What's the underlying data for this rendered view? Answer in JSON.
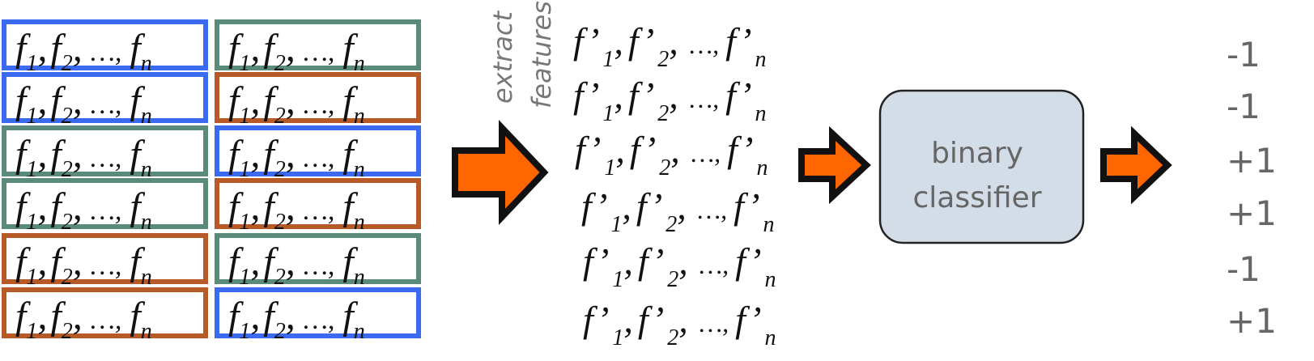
{
  "colors": {
    "blue": "#3a6af0",
    "green": "#5a8a78",
    "orange": "#b85a28",
    "arrow_fill": "#ff6600",
    "arrow_stroke": "#111111",
    "classifier_fill": "#d3dde8",
    "classifier_stroke": "#222222",
    "text_gray": "#666666",
    "label_gray": "#777777"
  },
  "left_grid": {
    "column_colors": [
      [
        "blue",
        "blue",
        "green",
        "green",
        "orange",
        "orange"
      ],
      [
        "green",
        "orange",
        "blue",
        "orange",
        "green",
        "blue"
      ]
    ],
    "row_text": {
      "f": "f",
      "sub1": "1",
      "sub2": "2",
      "subn": "n",
      "sep": ",",
      "ellipsis": "…,"
    }
  },
  "extract_label": {
    "line1": "extract",
    "line2": "features"
  },
  "feature_rows": {
    "count": 6,
    "f": "f",
    "prime": "’",
    "sub1": "1",
    "sub2": "2",
    "subn": "n",
    "sep": ",",
    "ellipsis": "…,"
  },
  "classifier": {
    "line1": "binary",
    "line2": "classifier"
  },
  "outputs": [
    "-1",
    "-1",
    "+1",
    "+1",
    "-1",
    "+1"
  ]
}
